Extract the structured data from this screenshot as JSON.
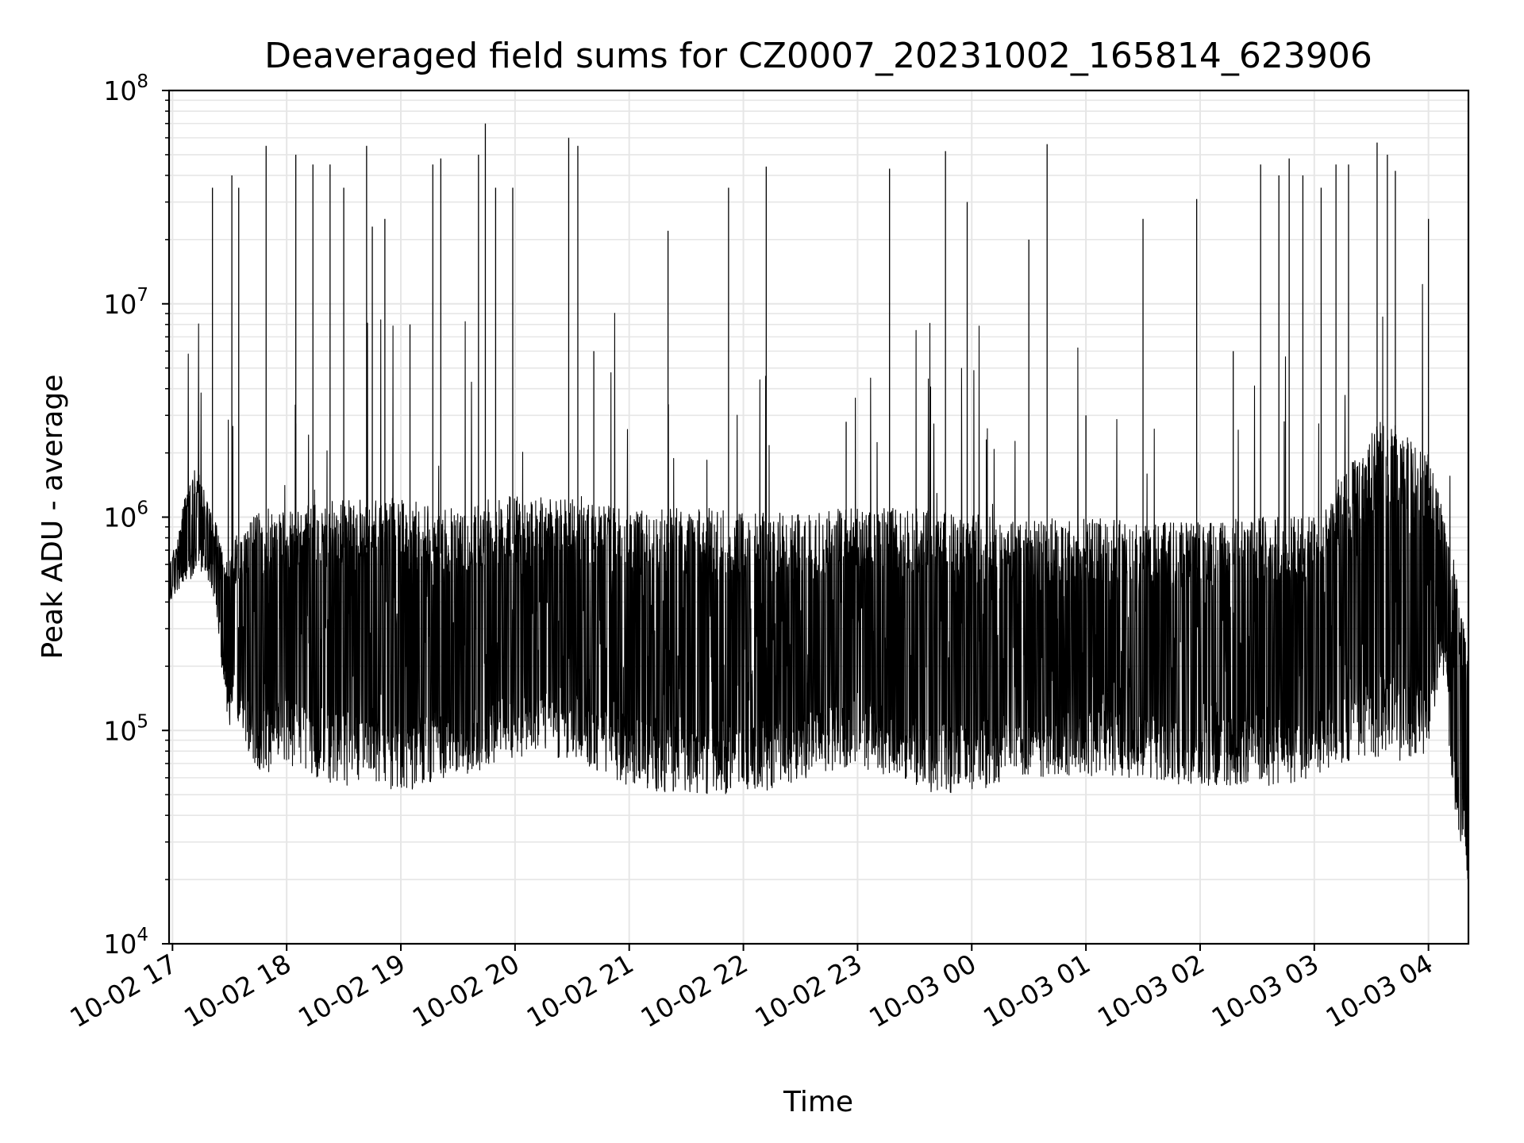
{
  "chart_data": {
    "type": "line",
    "title": "Deaveraged field sums for CZ0007_20231002_165814_623906",
    "xlabel": "Time",
    "ylabel": "Peak ADU - average",
    "x_tick_labels": [
      "10-02 17",
      "10-02 18",
      "10-02 19",
      "10-02 20",
      "10-02 21",
      "10-02 22",
      "10-02 23",
      "10-03 00",
      "10-03 01",
      "10-03 02",
      "10-03 03",
      "10-03 04"
    ],
    "x_ticks_hours": [
      17,
      18,
      19,
      20,
      21,
      22,
      23,
      24,
      25,
      26,
      27,
      28
    ],
    "x_range_hours": [
      16.97,
      28.35
    ],
    "y_scale": "log",
    "y_exponents": [
      4,
      5,
      6,
      7,
      8
    ],
    "y_tick_base": "10",
    "ylim": [
      10000,
      100000000
    ],
    "grid": true,
    "color": "#000000",
    "series": [
      {
        "x_hours": [
          16.97,
          17.0,
          17.05,
          17.1,
          17.15,
          17.2,
          17.25,
          17.3,
          17.35,
          17.4,
          17.45,
          17.5,
          17.55,
          17.6,
          17.7,
          17.8,
          17.9,
          18.0,
          18.1,
          18.2,
          18.3,
          18.4,
          18.5,
          18.6,
          18.7,
          18.8,
          18.9,
          19.0,
          19.1,
          19.2,
          19.3,
          19.4,
          19.5,
          19.6,
          19.7,
          19.8,
          19.9,
          20.0,
          20.2,
          20.4,
          20.6,
          20.8,
          21.0,
          21.2,
          21.4,
          21.6,
          21.8,
          22.0,
          22.2,
          22.4,
          22.6,
          22.8,
          23.0,
          23.2,
          23.4,
          23.6,
          23.8,
          24.0,
          24.2,
          24.4,
          24.6,
          24.8,
          25.0,
          25.2,
          25.4,
          25.6,
          25.8,
          26.0,
          26.2,
          26.4,
          26.6,
          26.8,
          27.0,
          27.2,
          27.4,
          27.6,
          27.8,
          28.0,
          28.1,
          28.15,
          28.2,
          28.25,
          28.3,
          28.35
        ],
        "y_low": [
          400000,
          420000,
          450000,
          480000,
          500000,
          520000,
          550000,
          500000,
          450000,
          300000,
          150000,
          100000,
          120000,
          100000,
          70000,
          60000,
          65000,
          70000,
          65000,
          60000,
          58000,
          55000,
          55000,
          55000,
          55000,
          55000,
          52000,
          50000,
          52000,
          55000,
          58000,
          60000,
          62000,
          60000,
          65000,
          70000,
          72000,
          75000,
          75000,
          72000,
          70000,
          60000,
          55000,
          52000,
          50000,
          50000,
          50000,
          50000,
          52000,
          55000,
          60000,
          65000,
          68000,
          60000,
          55000,
          50000,
          50000,
          52000,
          55000,
          58000,
          60000,
          60000,
          60000,
          62000,
          60000,
          58000,
          55000,
          55000,
          55000,
          55000,
          55000,
          55000,
          60000,
          65000,
          75000,
          75000,
          70000,
          70000,
          200000,
          150000,
          60000,
          35000,
          25000,
          18000
        ],
        "y_high": [
          600000,
          700000,
          800000,
          1200000,
          1500000,
          1800000,
          1500000,
          1200000,
          1000000,
          900000,
          800000,
          700000,
          800000,
          900000,
          1000000,
          1100000,
          1100000,
          1100000,
          1100000,
          1150000,
          1150000,
          1200000,
          1200000,
          1200000,
          1200000,
          1200000,
          1200000,
          1200000,
          1200000,
          1150000,
          1150000,
          1100000,
          1100000,
          1150000,
          1200000,
          1250000,
          1250000,
          1250000,
          1250000,
          1250000,
          1200000,
          1150000,
          1150000,
          1100000,
          1100000,
          1100000,
          1100000,
          1050000,
          1050000,
          1050000,
          1050000,
          1100000,
          1100000,
          1100000,
          1100000,
          1100000,
          1050000,
          1050000,
          1000000,
          1000000,
          1000000,
          1000000,
          1000000,
          1000000,
          950000,
          950000,
          950000,
          950000,
          1000000,
          1000000,
          1000000,
          1000000,
          1000000,
          1500000,
          2000000,
          3000000,
          2500000,
          2000000,
          1200000,
          1000000,
          800000,
          500000,
          350000,
          250000
        ],
        "spike_hours": [
          17.35,
          17.52,
          17.58,
          17.82,
          18.08,
          18.23,
          18.38,
          18.5,
          18.7,
          18.75,
          18.86,
          19.08,
          19.28,
          19.35,
          19.68,
          19.74,
          19.83,
          19.98,
          20.47,
          20.55,
          20.69,
          21.34,
          21.87,
          22.2,
          22.9,
          23.28,
          23.77,
          23.96,
          24.5,
          24.66,
          25.0,
          25.5,
          25.97,
          26.29,
          26.53,
          26.69,
          26.78,
          26.9,
          27.06,
          27.19,
          27.3,
          27.55,
          27.64,
          27.71,
          28.0
        ],
        "spike_values": [
          35000000,
          40000000,
          35000000,
          55000000,
          50000000,
          45000000,
          45000000,
          35000000,
          55000000,
          23000000,
          25000000,
          8000000,
          45000000,
          48000000,
          50000000,
          70000000,
          35000000,
          35000000,
          60000000,
          55000000,
          6000000,
          22000000,
          35000000,
          44000000,
          2800000,
          43000000,
          52000000,
          30000000,
          20000000,
          56000000,
          3000000,
          25000000,
          31000000,
          6000000,
          45000000,
          40000000,
          48000000,
          40000000,
          35000000,
          45000000,
          45000000,
          57000000,
          50000000,
          42000000,
          25000000
        ]
      }
    ]
  }
}
